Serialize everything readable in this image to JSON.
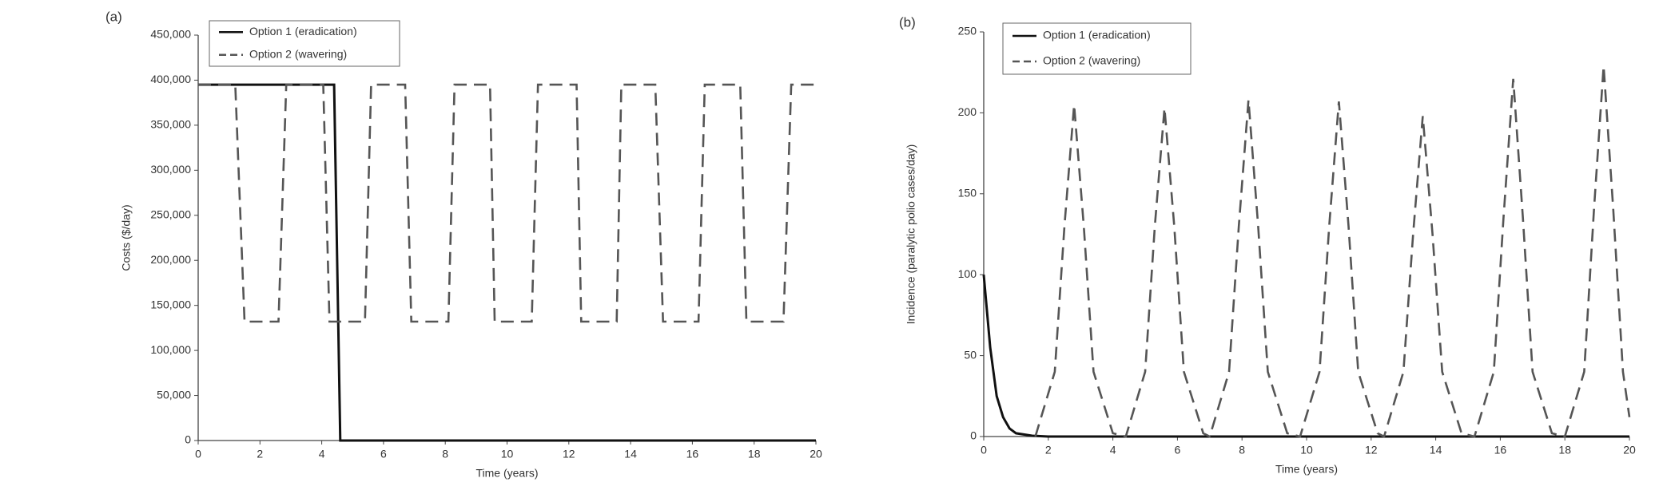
{
  "chart_data": [
    {
      "type": "line",
      "label": "(a)",
      "x_label": "Time (years)",
      "y_label": "Costs ($/day)",
      "xlim": [
        0,
        20
      ],
      "xticks": [
        0,
        2,
        4,
        6,
        8,
        10,
        12,
        14,
        16,
        18,
        20
      ],
      "ylim": [
        0,
        450000
      ],
      "yticks": [
        0,
        {
          "value": 50000,
          "label": "50,000"
        },
        {
          "value": 100000,
          "label": "100,000"
        },
        {
          "value": 150000,
          "label": "150,000"
        },
        {
          "value": 200000,
          "label": "200,000"
        },
        {
          "value": 250000,
          "label": "250,000"
        },
        {
          "value": 300000,
          "label": "300,000"
        },
        {
          "value": 350000,
          "label": "350,000"
        },
        {
          "value": 400000,
          "label": "400,000"
        },
        {
          "value": 450000,
          "label": "450,000"
        }
      ],
      "grid": false,
      "legend": "top-left",
      "series": [
        {
          "name": "Option 1 (eradication)",
          "color": "#111111",
          "line_style": "solid",
          "x": [
            0,
            4.4,
            4.6,
            20
          ],
          "values": [
            395000,
            395000,
            0,
            0
          ]
        },
        {
          "name": "Option 2 (wavering)",
          "color": "#555555",
          "line_style": "dashed",
          "x": [
            0,
            1.2,
            1.5,
            2.6,
            2.85,
            4.05,
            4.25,
            5.4,
            5.6,
            6.7,
            6.9,
            8.1,
            8.3,
            9.45,
            9.6,
            10.8,
            11.0,
            12.25,
            12.4,
            13.55,
            13.7,
            14.8,
            15.05,
            16.2,
            16.4,
            17.55,
            17.75,
            18.95,
            19.2,
            20
          ],
          "values": [
            395000,
            395000,
            132000,
            132000,
            395000,
            395000,
            132000,
            132000,
            395000,
            395000,
            132000,
            132000,
            395000,
            395000,
            132000,
            132000,
            395000,
            395000,
            132000,
            132000,
            395000,
            395000,
            132000,
            132000,
            395000,
            395000,
            132000,
            132000,
            395000,
            395000
          ]
        }
      ]
    },
    {
      "type": "line",
      "label": "(b)",
      "x_label": "Time (years)",
      "y_label": "Incidence (paralytic polio cases/day)",
      "xlim": [
        0,
        20
      ],
      "xticks": [
        0,
        2,
        4,
        6,
        8,
        10,
        12,
        14,
        16,
        18,
        20
      ],
      "ylim": [
        0,
        250
      ],
      "yticks": [
        0,
        50,
        100,
        150,
        200,
        250
      ],
      "grid": false,
      "legend": "top-left",
      "series": [
        {
          "name": "Option 1 (eradication)",
          "color": "#111111",
          "line_style": "solid",
          "x": [
            0,
            0.2,
            0.4,
            0.6,
            0.8,
            1.0,
            1.5,
            2.0,
            20
          ],
          "values": [
            100,
            55,
            25,
            12,
            5,
            2,
            0.5,
            0,
            0
          ]
        },
        {
          "name": "Option 2 (wavering)",
          "color": "#555555",
          "line_style": "dashed",
          "x": [
            1.6,
            2.2,
            2.5,
            2.8,
            3.1,
            3.4,
            4.0,
            4.4,
            5.0,
            5.3,
            5.6,
            5.9,
            6.2,
            6.8,
            7.0,
            7.6,
            7.9,
            8.2,
            8.5,
            8.8,
            9.4,
            9.8,
            10.4,
            10.7,
            11.0,
            11.3,
            11.6,
            12.2,
            12.4,
            13.0,
            13.3,
            13.6,
            13.9,
            14.2,
            14.8,
            15.2,
            15.8,
            16.1,
            16.4,
            16.7,
            17.0,
            17.6,
            18.0,
            18.6,
            18.9,
            19.2,
            19.5,
            19.8,
            20
          ],
          "values": [
            0,
            40,
            130,
            205,
            130,
            40,
            2,
            0,
            40,
            130,
            203,
            130,
            40,
            2,
            0,
            40,
            130,
            208,
            130,
            40,
            2,
            0,
            40,
            130,
            207,
            130,
            40,
            2,
            0,
            40,
            125,
            198,
            125,
            40,
            2,
            0,
            40,
            135,
            221,
            135,
            40,
            2,
            0,
            40,
            140,
            229,
            140,
            40,
            12
          ]
        }
      ]
    }
  ]
}
